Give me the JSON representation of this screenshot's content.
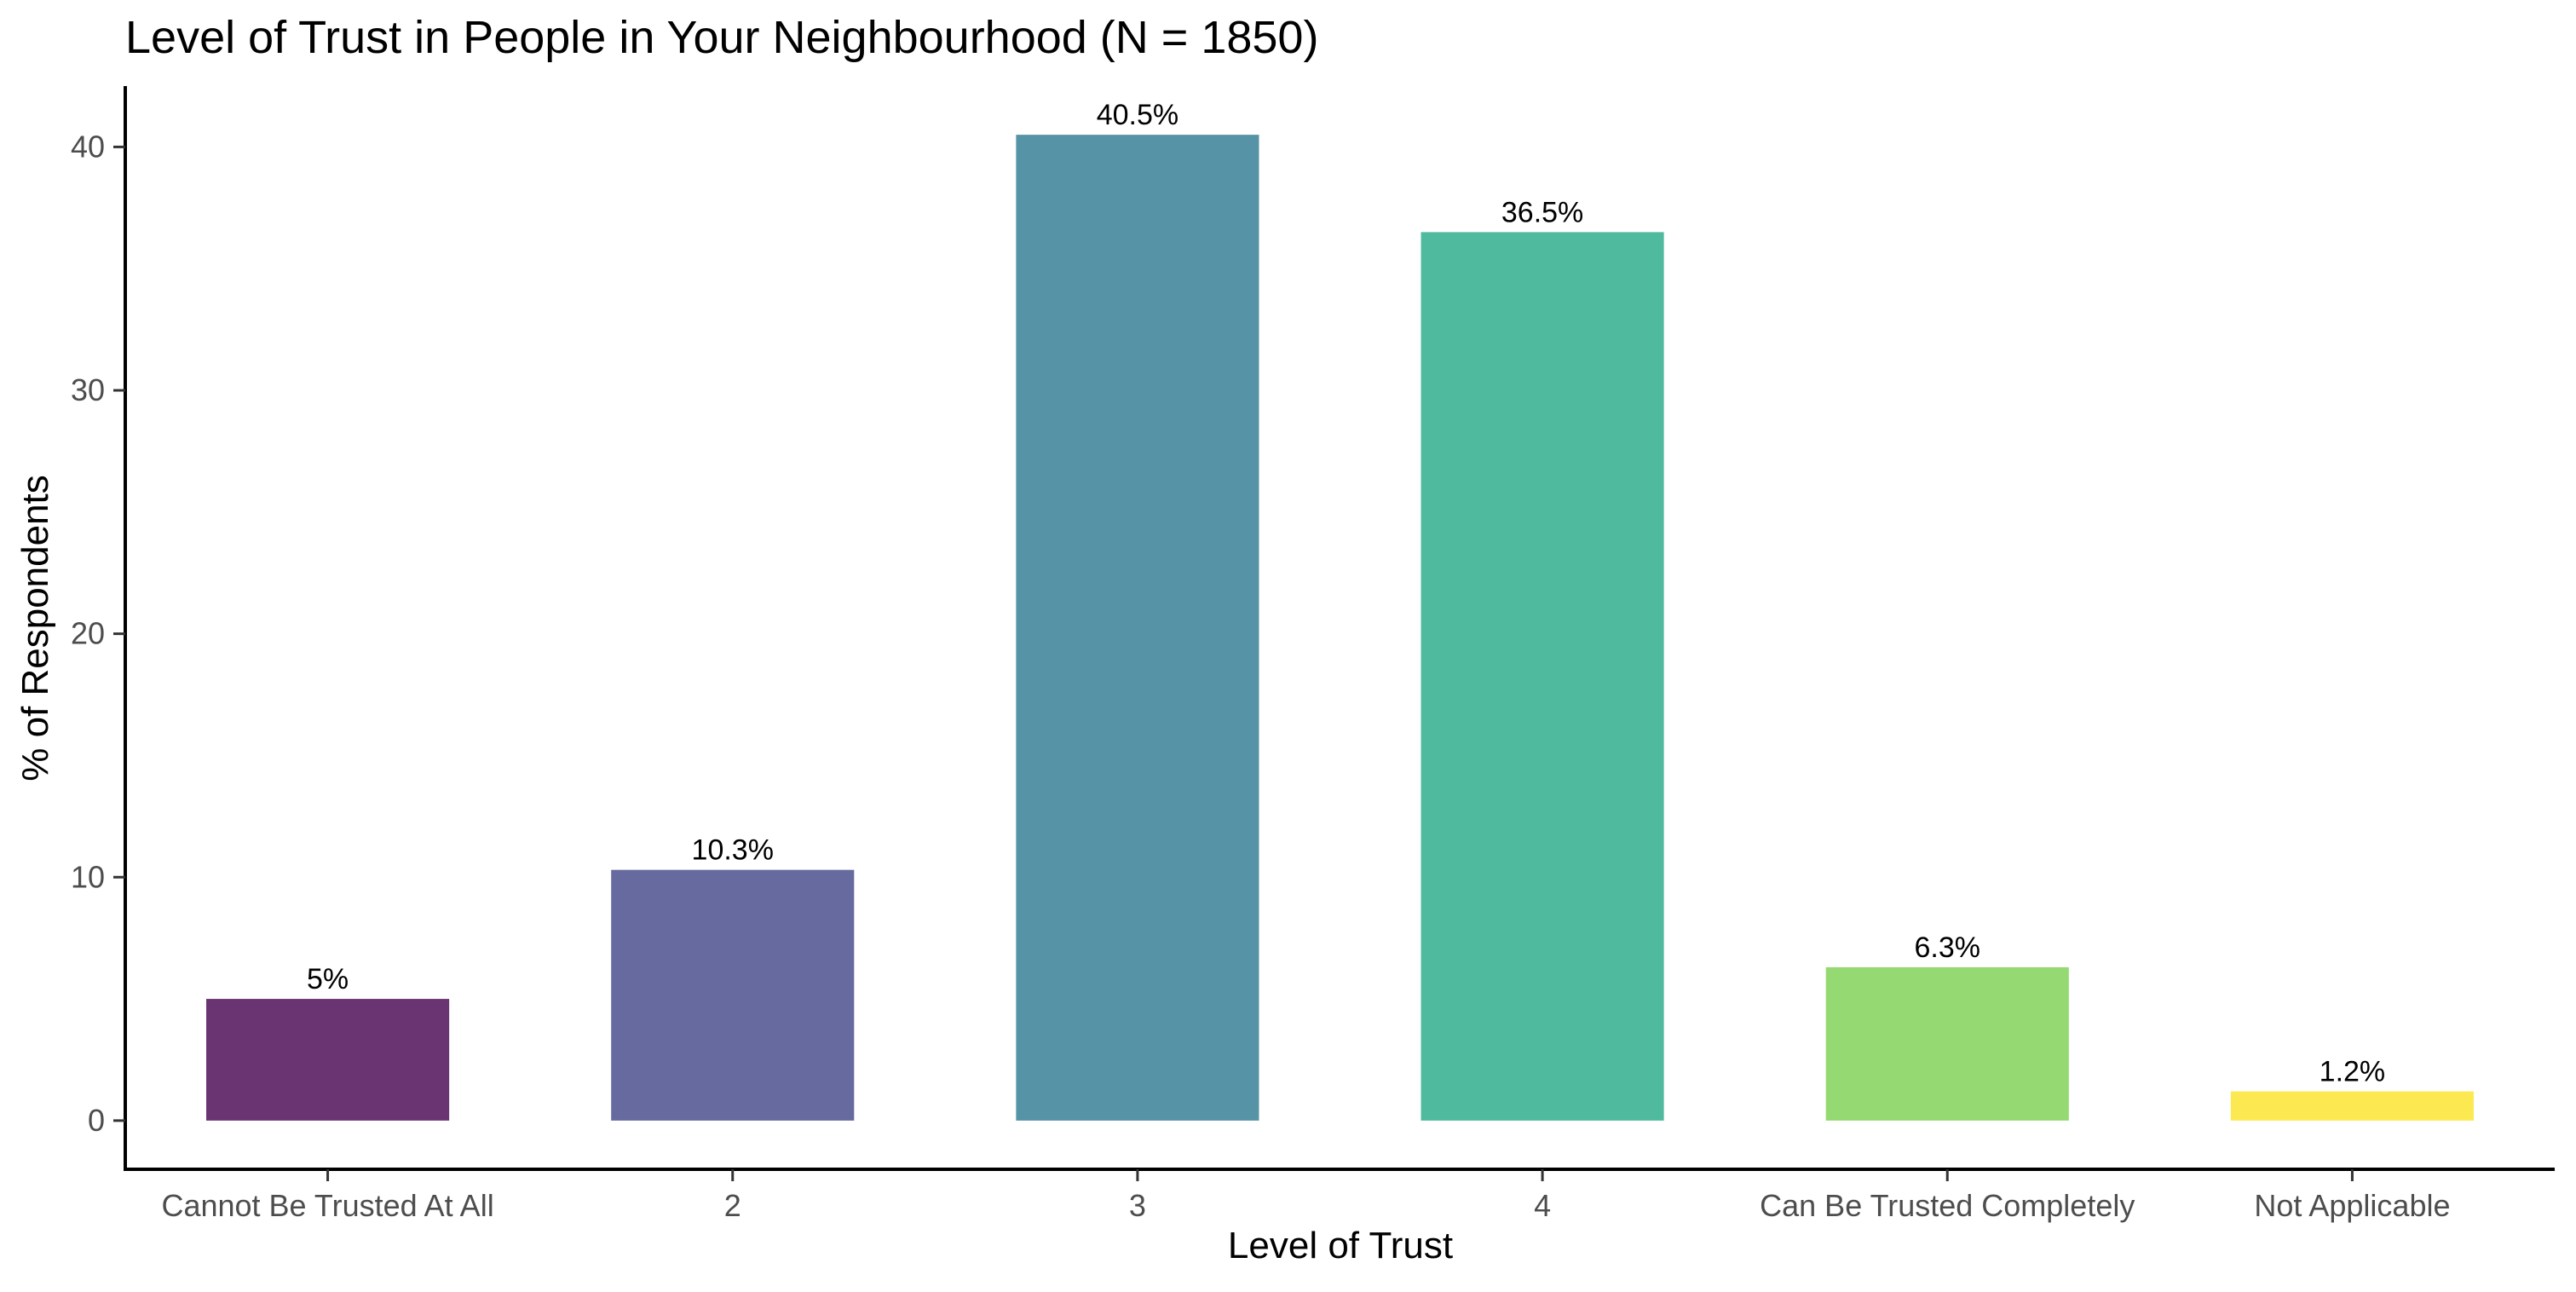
{
  "chart_data": {
    "type": "bar",
    "title": "Level of Trust in People in Your Neighbourhood (N = 1850)",
    "xlabel": "Level of Trust",
    "ylabel": "% of Respondents",
    "categories": [
      "Cannot Be Trusted At All",
      "2",
      "3",
      "4",
      "Can Be Trusted Completely",
      "Not Applicable"
    ],
    "values": [
      5.0,
      10.3,
      40.5,
      36.5,
      6.3,
      1.2
    ],
    "data_labels": [
      "5%",
      "10.3%",
      "40.5%",
      "36.5%",
      "6.3%",
      "1.2%"
    ],
    "colors": [
      "#6a3371",
      "#666a9e",
      "#5793a6",
      "#4fba9d",
      "#95d972",
      "#fce952"
    ],
    "ylim": [
      -2,
      42.5
    ],
    "yticks": [
      0,
      10,
      20,
      30,
      40
    ],
    "grid": false,
    "legend": "none"
  }
}
